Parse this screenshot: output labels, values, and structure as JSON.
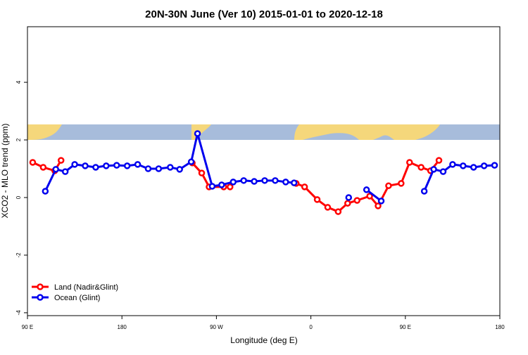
{
  "chart_data": {
    "type": "line",
    "title": "20N-30N June (Ver 10)   2015-01-01 to 2020-12-18",
    "x_label": "Longitude (deg E)",
    "y_label": "XCO2 - MLO trend (ppm)",
    "xlim": [
      90,
      540
    ],
    "xticks": [
      {
        "value": 90,
        "label": "90 E"
      },
      {
        "value": 180,
        "label": "180"
      },
      {
        "value": 270,
        "label": "90 W"
      },
      {
        "value": 360,
        "label": "0"
      },
      {
        "value": 450,
        "label": "90 E"
      },
      {
        "value": 540,
        "label": "180"
      }
    ],
    "ylim": [
      -4.1,
      5.93
    ],
    "yticks": [
      -4,
      -2,
      0,
      2,
      4
    ],
    "legend": "bottom-left",
    "series": [
      {
        "name": "Land (Nadir&Glint)",
        "color": "#ff0000",
        "x": [
          95,
          105,
          116,
          122,
          null,
          247,
          256,
          263,
          277,
          283,
          null,
          346,
          354,
          366,
          376,
          386,
          395,
          404,
          416,
          424,
          434,
          446,
          454,
          465,
          474,
          482
        ],
        "values": [
          1.22,
          1.05,
          0.93,
          1.29,
          null,
          1.2,
          0.85,
          0.37,
          0.37,
          0.37,
          null,
          0.49,
          0.37,
          -0.07,
          -0.34,
          -0.49,
          -0.2,
          -0.1,
          0.05,
          -0.29,
          0.41,
          0.49,
          1.22,
          1.05,
          0.93,
          1.29
        ]
      },
      {
        "name": "Ocean (Glint)",
        "color": "#0000ee",
        "x": [
          107,
          117,
          126,
          135,
          145,
          155,
          165,
          175,
          185,
          195,
          205,
          215,
          226,
          235,
          246,
          252,
          266,
          275,
          286,
          296,
          306,
          316,
          326,
          336,
          344,
          null,
          396,
          null,
          413,
          427,
          null,
          468,
          477,
          486,
          495,
          505,
          515,
          525,
          535
        ],
        "values": [
          0.22,
          0.98,
          0.9,
          1.15,
          1.1,
          1.05,
          1.1,
          1.12,
          1.1,
          1.15,
          1.0,
          1.0,
          1.05,
          0.98,
          1.24,
          2.22,
          0.39,
          0.44,
          0.54,
          0.59,
          0.56,
          0.59,
          0.59,
          0.54,
          0.51,
          null,
          0.0,
          null,
          0.27,
          -0.12,
          null,
          0.22,
          0.98,
          0.9,
          1.15,
          1.1,
          1.05,
          1.1,
          1.12
        ]
      }
    ]
  }
}
